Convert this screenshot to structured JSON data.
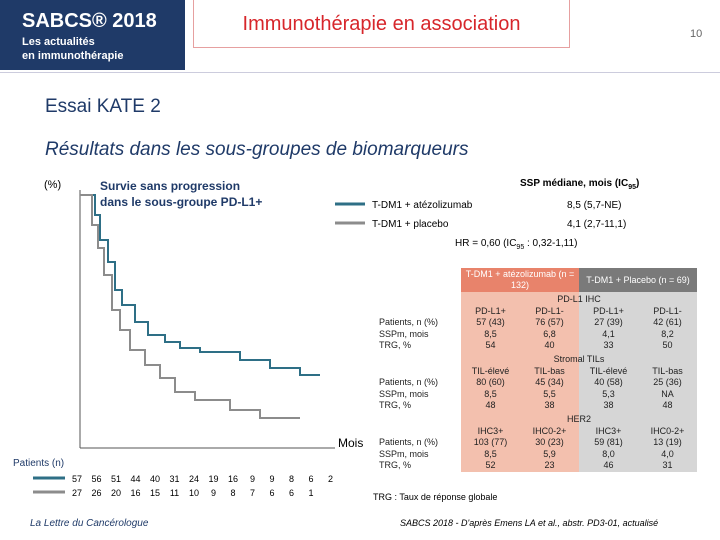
{
  "header": {
    "logo_title": "SABCS® 2018",
    "logo_line1": "Les actualités",
    "logo_line2": "en immunothérapie",
    "title": "Immunothérapie en association",
    "page_number": "10"
  },
  "trial": "Essai KATE 2",
  "subtitle": "Résultats dans les sous-groupes de biomarqueurs",
  "plot": {
    "y_unit": "(%)",
    "title": "Survie sans progression dans le sous-groupe PD-L1+",
    "median_header": {
      "text": "SSP médiane, mois (IC",
      "sub": "95",
      "end": ")"
    },
    "legend": [
      {
        "name": "T-DM1 + atézolizumab",
        "median": "8,5 (5,7-NE)",
        "color": "#2e6f86"
      },
      {
        "name": "T-DM1 + placebo",
        "median": "4,1 (2,7-11,1)",
        "color": "#8c8c8c"
      }
    ],
    "hr": {
      "text": "HR = 0,60 (IC",
      "sub": "95",
      "end": " : 0,32-1,11)"
    },
    "x_label": "Mois",
    "at_risk_label": "Patients (n)",
    "at_risk": [
      [
        57,
        56,
        51,
        44,
        40,
        31,
        24,
        19,
        16,
        9,
        9,
        8,
        6,
        2
      ],
      [
        27,
        26,
        20,
        16,
        15,
        11,
        10,
        9,
        8,
        7,
        6,
        6,
        1
      ]
    ]
  },
  "table": {
    "arm_headers": [
      "T-DM1 + atézolizumab (n = 132)",
      "T-DM1 + Placebo (n = 69)"
    ],
    "row_labels": [
      "Patients, n (%)",
      "SSPm, mois",
      "TRG, %"
    ],
    "sections": [
      {
        "title": "PD-L1 IHC",
        "columns": [
          "PD-L1+",
          "PD-L1-",
          "PD-L1+",
          "PD-L1-"
        ],
        "rows": [
          [
            "57 (43)",
            "76 (57)",
            "27 (39)",
            "42 (61)"
          ],
          [
            "8,5",
            "6,8",
            "4,1",
            "8,2"
          ],
          [
            "54",
            "40",
            "33",
            "50"
          ]
        ]
      },
      {
        "title": "Stromal TILs",
        "columns": [
          "TIL-élevé",
          "TIL-bas",
          "TIL-élevé",
          "TIL-bas"
        ],
        "rows": [
          [
            "80 (60)",
            "45 (34)",
            "40 (58)",
            "25 (36)"
          ],
          [
            "8,5",
            "5,5",
            "5,3",
            "NA"
          ],
          [
            "48",
            "38",
            "38",
            "48"
          ]
        ]
      },
      {
        "title": "HER2",
        "columns": [
          "IHC3+",
          "IHC0-2+",
          "IHC3+",
          "IHC0-2+"
        ],
        "rows": [
          [
            "103 (77)",
            "30 (23)",
            "59 (81)",
            "13 (19)"
          ],
          [
            "8,5",
            "5,9",
            "8,0",
            "4,0"
          ],
          [
            "52",
            "23",
            "46",
            "31"
          ]
        ]
      }
    ],
    "note": "TRG : Taux de réponse globale"
  },
  "footer": {
    "left": "La Lettre du Cancérologue",
    "right": "SABCS 2018 - D'après Emens LA et al., abstr. PD3-01, actualisé"
  }
}
